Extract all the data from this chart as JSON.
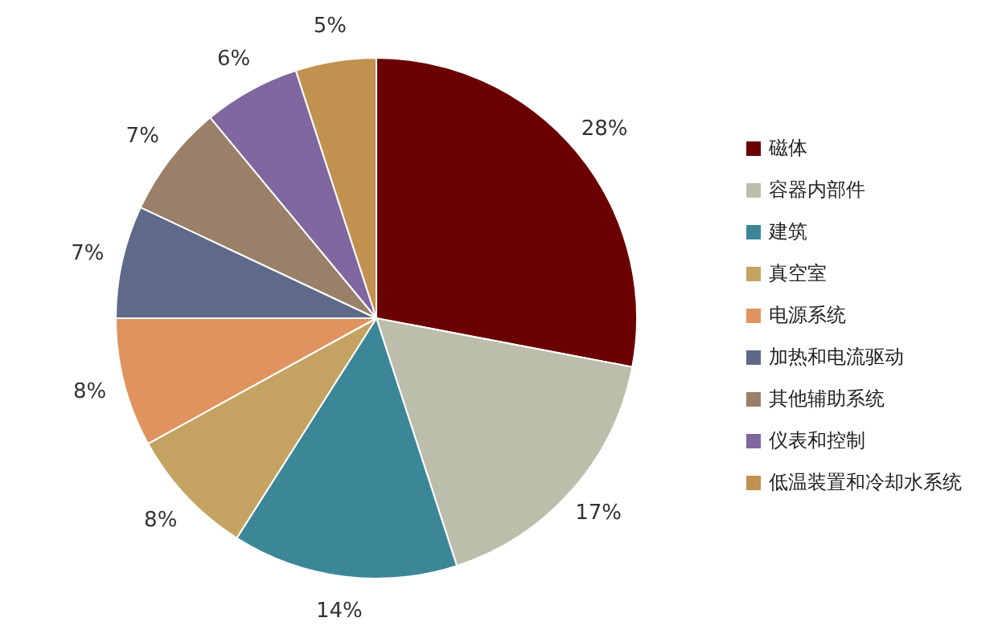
{
  "chart_data": {
    "type": "pie",
    "categories": [
      "磁体",
      "容器内部件",
      "建筑",
      "真空室",
      "电源系统",
      "加热和电流驱动",
      "其他辅助系统",
      "仪表和控制",
      "低温装置和冷却水系统"
    ],
    "values": [
      28,
      17,
      14,
      8,
      8,
      7,
      7,
      6,
      5
    ],
    "colors": [
      "#6b0000",
      "#bdbdab",
      "#3b8798",
      "#c4a362",
      "#e0935f",
      "#5f6a8a",
      "#9a8068",
      "#7f67a0",
      "#c0914f"
    ],
    "value_labels": [
      "28%",
      "17%",
      "14%",
      "8%",
      "8%",
      "7%",
      "7%",
      "6%",
      "5%"
    ],
    "legend": "right"
  }
}
